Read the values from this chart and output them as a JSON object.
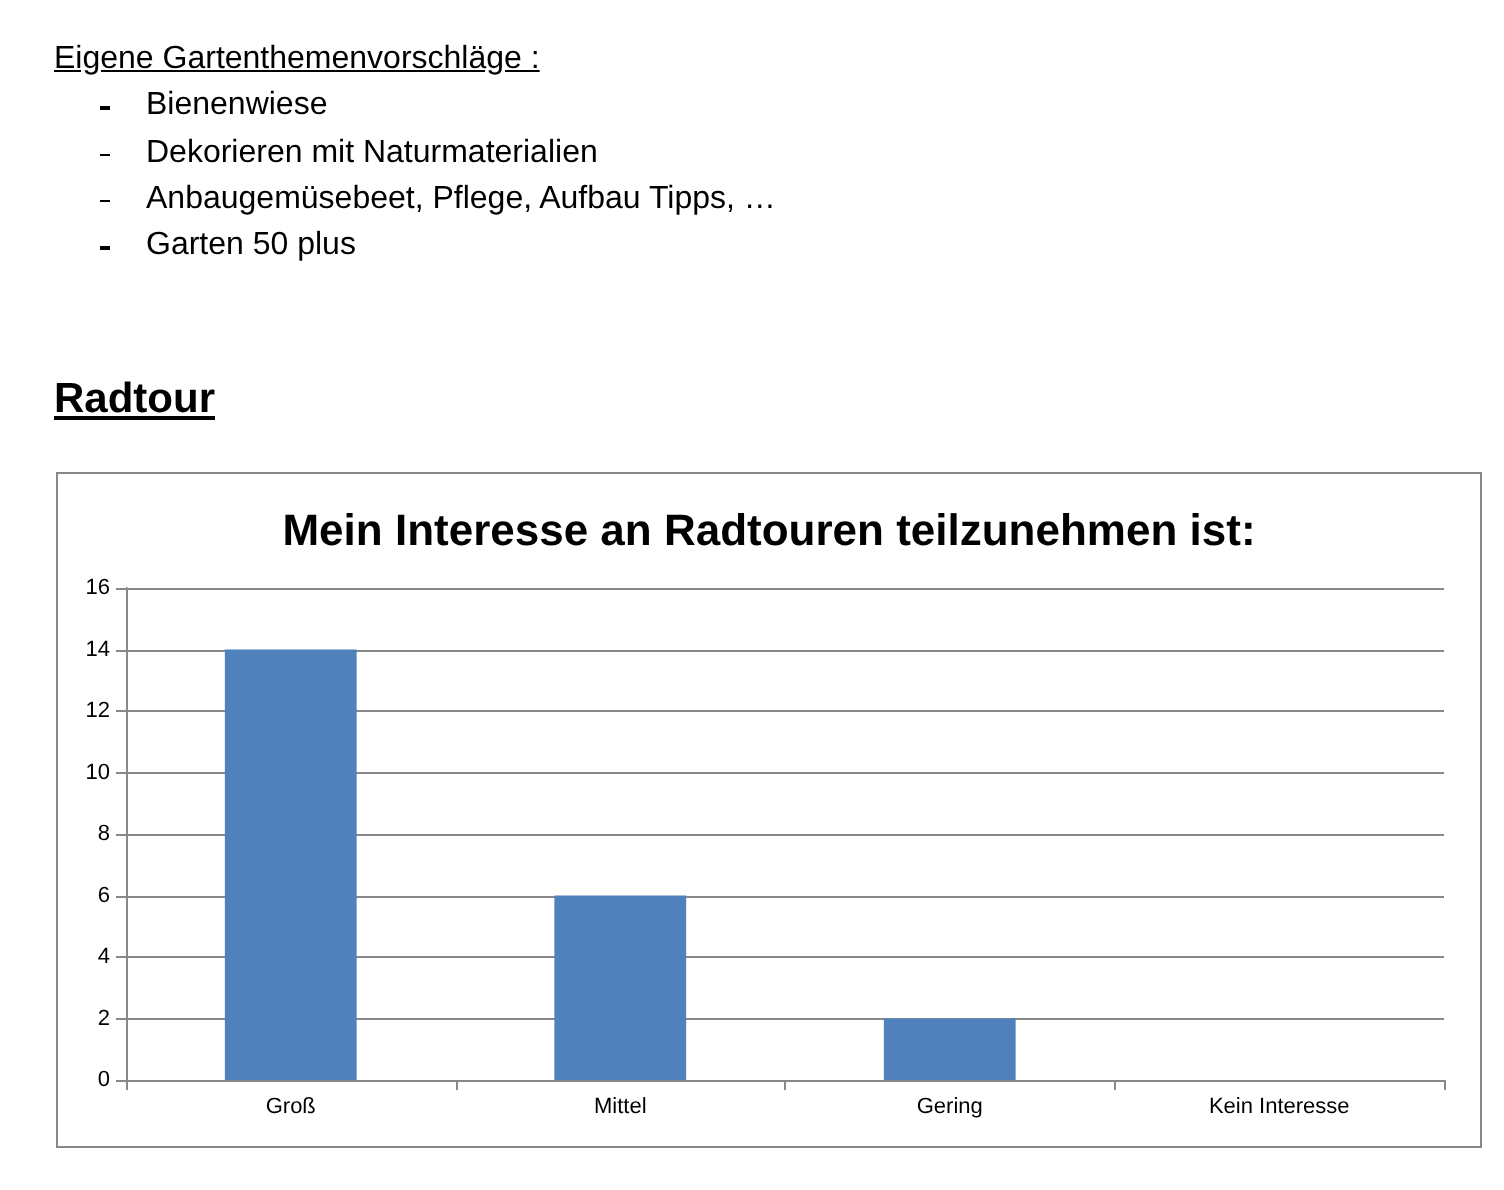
{
  "chart_data": {
    "type": "bar",
    "title": "Mein Interesse an Radtouren teilzunehmen ist:",
    "annotations": [
      "Eigene Gartenthemenvorschläge :",
      "Bienenwiese",
      "Dekorieren mit Naturmaterialien",
      "Anbaugemüsebeet, Pflege, Aufbau Tipps, …",
      "Garten 50 plus",
      "Radtour"
    ],
    "categories": [
      "Groß",
      "Mittel",
      "Gering",
      "Kein Interesse"
    ],
    "values": [
      14,
      6,
      2,
      0
    ],
    "color": "#4f81bd",
    "ylim": [
      0,
      16
    ],
    "yticks": [
      0,
      2,
      4,
      6,
      8,
      10,
      12,
      14,
      16
    ],
    "grid": "y"
  }
}
